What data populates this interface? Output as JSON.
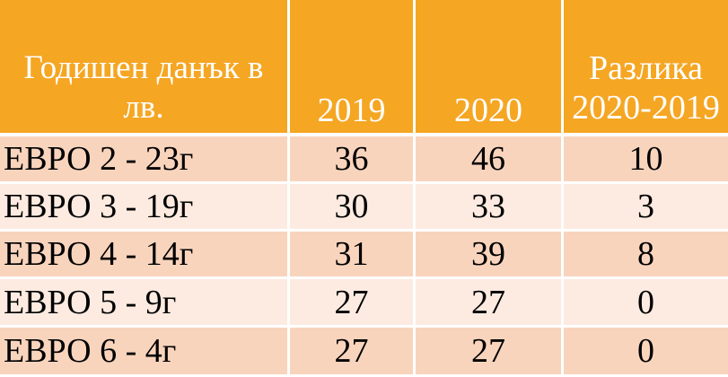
{
  "table": {
    "headers": [
      "Годишен данък в лв.",
      "2019",
      "2020",
      "Разлика 2020-2019"
    ],
    "rows": [
      {
        "label": "ЕВРО 2 - 23г",
        "y2019": "36",
        "y2020": "46",
        "diff": "10"
      },
      {
        "label": "ЕВРО 3 - 19г",
        "y2019": "30",
        "y2020": "33",
        "diff": "3"
      },
      {
        "label": "ЕВРО 4 - 14г",
        "y2019": "31",
        "y2020": "39",
        "diff": "8"
      },
      {
        "label": "ЕВРО 5 - 9г",
        "y2019": "27",
        "y2020": "27",
        "diff": "0"
      },
      {
        "label": "ЕВРО 6 - 4г",
        "y2019": "27",
        "y2020": "27",
        "diff": "0"
      }
    ]
  },
  "colors": {
    "header_bg": "#f5a623",
    "header_text": "#ffffff",
    "row_dark": "#f9d4bd",
    "row_light": "#fdebe1"
  }
}
